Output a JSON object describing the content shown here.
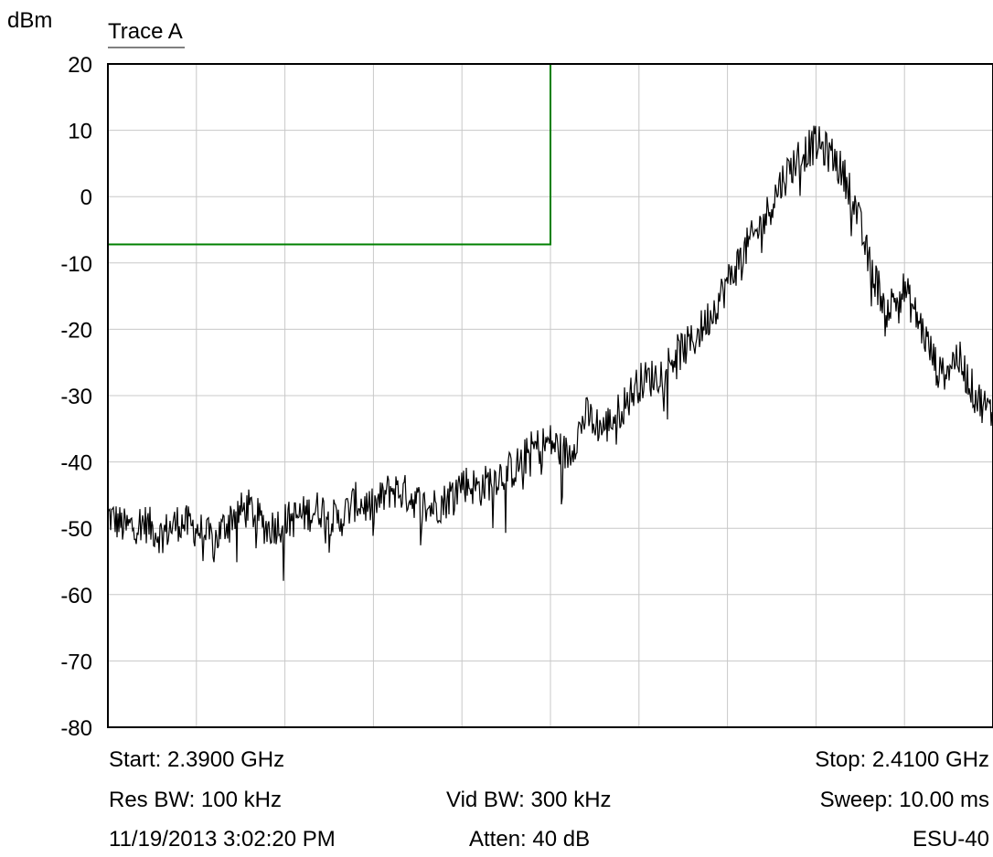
{
  "chart_data": {
    "type": "line",
    "unit_label": "dBm",
    "trace_label": "Trace A",
    "xlim": [
      2.39,
      2.41
    ],
    "x_unit": "GHz",
    "ylim": [
      -80,
      20
    ],
    "yticks": [
      "20",
      "10",
      "0",
      "-10",
      "-20",
      "-30",
      "-40",
      "-50",
      "-60",
      "-70",
      "-80"
    ],
    "grid": true,
    "limit_line": {
      "color": "#008000",
      "level": -7.2,
      "x_end": 2.4
    },
    "series": [
      {
        "color": "#000000",
        "x": [
          2.39,
          2.3904,
          2.3908,
          2.3912,
          2.3916,
          2.392,
          2.3924,
          2.3928,
          2.3932,
          2.3936,
          2.394,
          2.3944,
          2.3948,
          2.3952,
          2.3956,
          2.396,
          2.3964,
          2.3968,
          2.3972,
          2.3976,
          2.398,
          2.3984,
          2.3988,
          2.3992,
          2.3996,
          2.4,
          2.4004,
          2.4008,
          2.4012,
          2.4016,
          2.402,
          2.4024,
          2.4028,
          2.4032,
          2.4036,
          2.404,
          2.4044,
          2.4048,
          2.4052,
          2.4056,
          2.406,
          2.4064,
          2.4068,
          2.4072,
          2.4076,
          2.408,
          2.4084,
          2.4088,
          2.4092,
          2.4096,
          2.41
        ],
        "values": [
          -48,
          -50,
          -49,
          -51,
          -49,
          -50,
          -52,
          -48,
          -47,
          -50,
          -49,
          -48,
          -47,
          -49,
          -46,
          -47,
          -44,
          -45,
          -47,
          -46,
          -43,
          -44,
          -42,
          -41,
          -38,
          -37,
          -39,
          -33,
          -35,
          -32,
          -28,
          -27,
          -24,
          -22,
          -18,
          -13,
          -8,
          -4,
          2,
          6,
          8,
          6,
          1,
          -10,
          -17,
          -14,
          -20,
          -27,
          -24,
          -30,
          -33
        ]
      }
    ]
  },
  "footer": {
    "start": "Start: 2.3900 GHz",
    "stop": "Stop: 2.4100 GHz",
    "res_bw": "Res BW: 100 kHz",
    "vid_bw": "Vid BW: 300 kHz",
    "sweep": "Sweep: 10.00 ms",
    "timestamp": "11/19/2013 3:02:20 PM",
    "atten": "Atten: 40 dB",
    "model": "ESU-40"
  }
}
